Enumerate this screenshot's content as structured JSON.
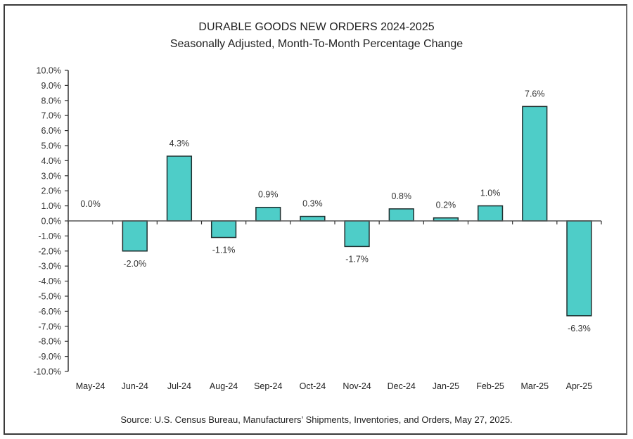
{
  "chart_data": {
    "type": "bar",
    "title": "DURABLE GOODS NEW ORDERS 2024-2025",
    "subtitle": "Seasonally Adjusted,  Month-To-Month Percentage Change",
    "xlabel": "",
    "ylabel": "",
    "categories": [
      "May-24",
      "Jun-24",
      "Jul-24",
      "Aug-24",
      "Sep-24",
      "Oct-24",
      "Nov-24",
      "Dec-24",
      "Jan-25",
      "Feb-25",
      "Mar-25",
      "Apr-25"
    ],
    "values": [
      0.0,
      -2.0,
      4.3,
      -1.1,
      0.9,
      0.3,
      -1.7,
      0.8,
      0.2,
      1.0,
      7.6,
      -6.3
    ],
    "data_labels": [
      "0.0%",
      "-2.0%",
      "4.3%",
      "-1.1%",
      "0.9%",
      "0.3%",
      "-1.7%",
      "0.8%",
      "0.2%",
      "1.0%",
      "7.6%",
      "-6.3%"
    ],
    "ylim": [
      -10,
      10
    ],
    "yticks": [
      10,
      9,
      8,
      7,
      6,
      5,
      4,
      3,
      2,
      1,
      0,
      -1,
      -2,
      -3,
      -4,
      -5,
      -6,
      -7,
      -8,
      -9,
      -10
    ],
    "ytick_labels": [
      "10.0%",
      "9.0%",
      "8.0%",
      "7.0%",
      "6.0%",
      "5.0%",
      "4.0%",
      "3.0%",
      "2.0%",
      "1.0%",
      "0.0%",
      "-1.0%",
      "-2.0%",
      "-3.0%",
      "-4.0%",
      "-5.0%",
      "-6.0%",
      "-7.0%",
      "-8.0%",
      "-9.0%",
      "-10.0%"
    ],
    "grid": false,
    "legend": "none",
    "bar_color": "#4ecdc8",
    "bar_edge_color": "#1f2f2f",
    "source": "Source: U.S. Census Bureau, Manufacturers’ Shipments, Inventories, and Orders, May 27, 2025."
  }
}
